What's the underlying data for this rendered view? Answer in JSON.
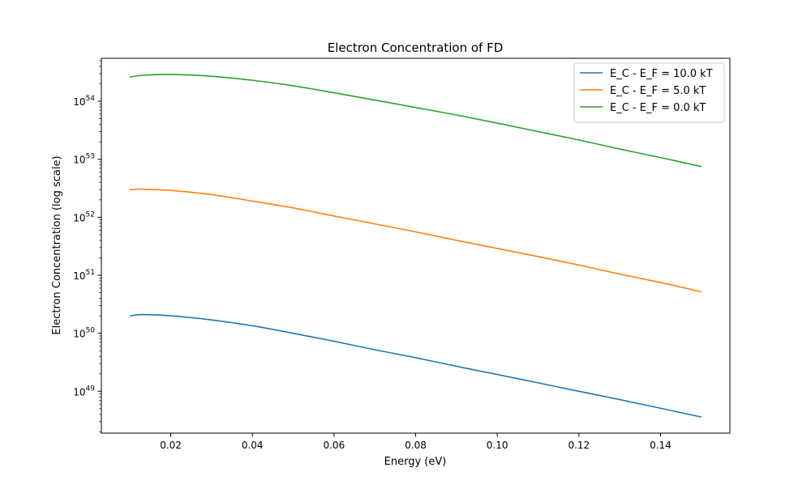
{
  "chart_data": {
    "type": "line",
    "title": "Electron Concentration of FD",
    "xlabel": "Energy (eV)",
    "ylabel": "Electron Concentration (log scale)",
    "yscale": "log",
    "xlim": [
      0.003,
      0.157
    ],
    "ylim": [
      1.9e+48,
      5.5e+54
    ],
    "grid": false,
    "legend_position": "top-right",
    "x_ticks": [
      0.02,
      0.04,
      0.06,
      0.08,
      0.1,
      0.12,
      0.14
    ],
    "x_tick_labels": [
      "0.02",
      "0.04",
      "0.06",
      "0.08",
      "0.10",
      "0.12",
      "0.14"
    ],
    "y_ticks": [
      {
        "value": 1e+49,
        "base": "10",
        "exp": "49"
      },
      {
        "value": 1e+50,
        "base": "10",
        "exp": "50"
      },
      {
        "value": 1e+51,
        "base": "10",
        "exp": "51"
      },
      {
        "value": 1e+52,
        "base": "10",
        "exp": "52"
      },
      {
        "value": 1e+53,
        "base": "10",
        "exp": "53"
      },
      {
        "value": 1e+54,
        "base": "10",
        "exp": "54"
      }
    ],
    "x": [
      0.01,
      0.013,
      0.02,
      0.03,
      0.04,
      0.05,
      0.06,
      0.07,
      0.08,
      0.09,
      0.1,
      0.11,
      0.12,
      0.13,
      0.14,
      0.15
    ],
    "series": [
      {
        "name": "E_C - E_F = 10.0 kT",
        "color": "#1f77b4",
        "values": [
          2e+50,
          2.1e+50,
          2e+50,
          1.7e+50,
          1.35e+50,
          1e+50,
          7.3e+49,
          5.2e+49,
          3.8e+49,
          2.7e+49,
          1.95e+49,
          1.4e+49,
          1e+49,
          7.2e+48,
          5.1e+48,
          3.6e+48
        ]
      },
      {
        "name": "E_C - E_F = 5.0 kT",
        "color": "#ff7f0e",
        "values": [
          3e+52,
          3.05e+52,
          2.9e+52,
          2.45e+52,
          1.9e+52,
          1.45e+52,
          1.05e+52,
          7.7e+51,
          5.6e+51,
          4e+51,
          2.9e+51,
          2.1e+51,
          1.5e+51,
          1.05e+51,
          7.5e+50,
          5.2e+50
        ]
      },
      {
        "name": "E_C - E_F = 0.0 kT",
        "color": "#2ca02c",
        "values": [
          2.6e+54,
          2.8e+54,
          2.9e+54,
          2.7e+54,
          2.3e+54,
          1.85e+54,
          1.4e+54,
          1.05e+54,
          7.8e+53,
          5.8e+53,
          4.2e+53,
          3e+53,
          2.15e+53,
          1.5e+53,
          1.07e+53,
          7.5e+52
        ]
      }
    ]
  }
}
